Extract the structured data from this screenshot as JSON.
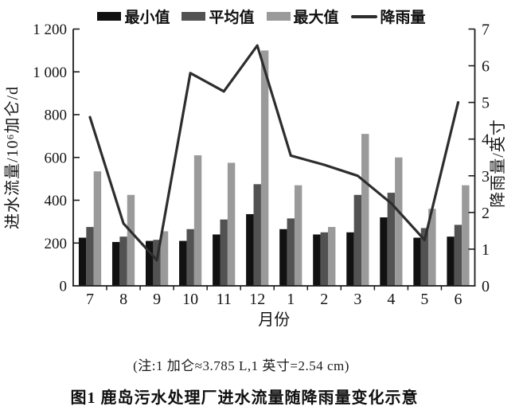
{
  "figure": {
    "note": "(注:1 加仑≈3.785 L,1 英寸=2.54 cm)",
    "caption": "图1  鹿岛污水处理厂进水流量随降雨量变化示意"
  },
  "chart_data": {
    "type": "bar+line",
    "title": "",
    "categories": [
      "7",
      "8",
      "9",
      "10",
      "11",
      "12",
      "1",
      "2",
      "3",
      "4",
      "5",
      "6"
    ],
    "xlabel": "月份",
    "ylabel_left": "进水流量/10⁶加仑/d",
    "ylabel_right": "降雨量/英寸",
    "ylim_left": [
      0,
      1200
    ],
    "yticks_left": [
      "0",
      "200",
      "400",
      "600",
      "800",
      "1 000",
      "1 200"
    ],
    "ylim_right": [
      0,
      7
    ],
    "yticks_right": [
      "0",
      "1",
      "2",
      "3",
      "4",
      "5",
      "6",
      "7"
    ],
    "grid": false,
    "legend_position": "top",
    "series": [
      {
        "name": "最小值",
        "type": "bar",
        "axis": "left",
        "color": "#111111",
        "values": [
          225,
          205,
          210,
          210,
          240,
          335,
          265,
          240,
          250,
          320,
          225,
          230
        ]
      },
      {
        "name": "平均值",
        "type": "bar",
        "axis": "left",
        "color": "#525252",
        "values": [
          275,
          230,
          215,
          265,
          310,
          475,
          315,
          250,
          425,
          435,
          270,
          285
        ]
      },
      {
        "name": "最大值",
        "type": "bar",
        "axis": "left",
        "color": "#9a9a9a",
        "values": [
          535,
          425,
          255,
          610,
          575,
          1100,
          470,
          275,
          710,
          600,
          360,
          470
        ]
      },
      {
        "name": "降雨量",
        "type": "line",
        "axis": "right",
        "color": "#2d2d2d",
        "values": [
          4.6,
          1.7,
          0.7,
          5.8,
          5.3,
          6.55,
          3.55,
          3.3,
          3.0,
          2.25,
          1.25,
          5.0
        ]
      }
    ],
    "axis_color": "#1c1c1c"
  }
}
